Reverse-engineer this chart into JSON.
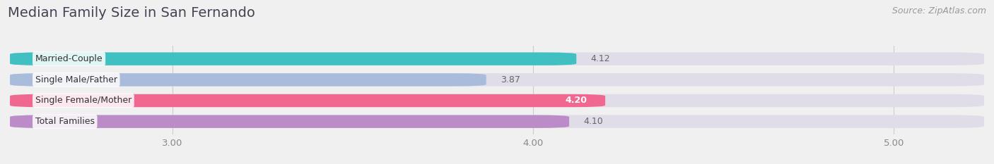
{
  "title": "Median Family Size in San Fernando",
  "source": "Source: ZipAtlas.com",
  "categories": [
    "Married-Couple",
    "Single Male/Father",
    "Single Female/Mother",
    "Total Families"
  ],
  "values": [
    4.12,
    3.87,
    4.2,
    4.1
  ],
  "bar_colors": [
    "#40c0c0",
    "#aabcdc",
    "#f06890",
    "#bc8cc8"
  ],
  "xlim_left": 2.55,
  "xlim_right": 5.25,
  "xticks": [
    3.0,
    4.0,
    5.0
  ],
  "xtick_labels": [
    "3.00",
    "4.00",
    "5.00"
  ],
  "title_color": "#444455",
  "title_fontsize": 14,
  "source_fontsize": 9,
  "bar_height": 0.62,
  "background_color": "#f0f0f0",
  "bar_background_color": "#e0dde8",
  "value_label_fontsize": 9,
  "cat_label_fontsize": 9
}
